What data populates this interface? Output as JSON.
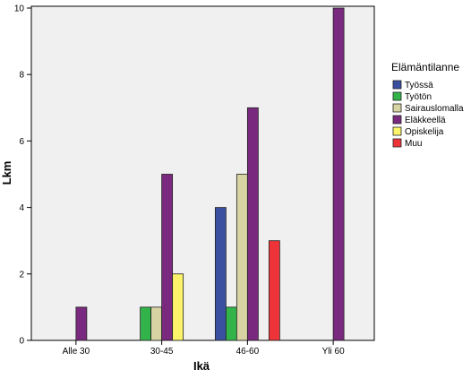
{
  "chart_data": {
    "type": "bar",
    "xlabel": "Ikä",
    "ylabel": "Lkm",
    "categories": [
      "Alle 30",
      "30-45",
      "46-60",
      "Yli 60"
    ],
    "ylim": [
      0,
      10
    ],
    "yticks": [
      "0",
      "2",
      "4",
      "6",
      "8",
      "10"
    ],
    "grid": false,
    "legend": {
      "title": "Elämäntilanne",
      "position": "right"
    },
    "series": [
      {
        "name": "Työssä",
        "color": "#3a4fa0",
        "values": [
          0,
          0,
          4,
          0
        ]
      },
      {
        "name": "Työtön",
        "color": "#32b44a",
        "values": [
          0,
          1,
          1,
          0
        ]
      },
      {
        "name": "Sairauslomalla",
        "color": "#d8d3a2",
        "values": [
          0,
          1,
          5,
          0
        ]
      },
      {
        "name": "Eläkkeellä",
        "color": "#7a2a7e",
        "values": [
          1,
          5,
          7,
          10
        ]
      },
      {
        "name": "Opiskelija",
        "color": "#fbf46a",
        "values": [
          0,
          2,
          0,
          0
        ]
      },
      {
        "name": "Muu",
        "color": "#ee3438",
        "values": [
          0,
          0,
          3,
          0
        ]
      }
    ],
    "colors": {
      "plot_background": "#f0f0f0",
      "bar_stroke": "#222222"
    }
  }
}
